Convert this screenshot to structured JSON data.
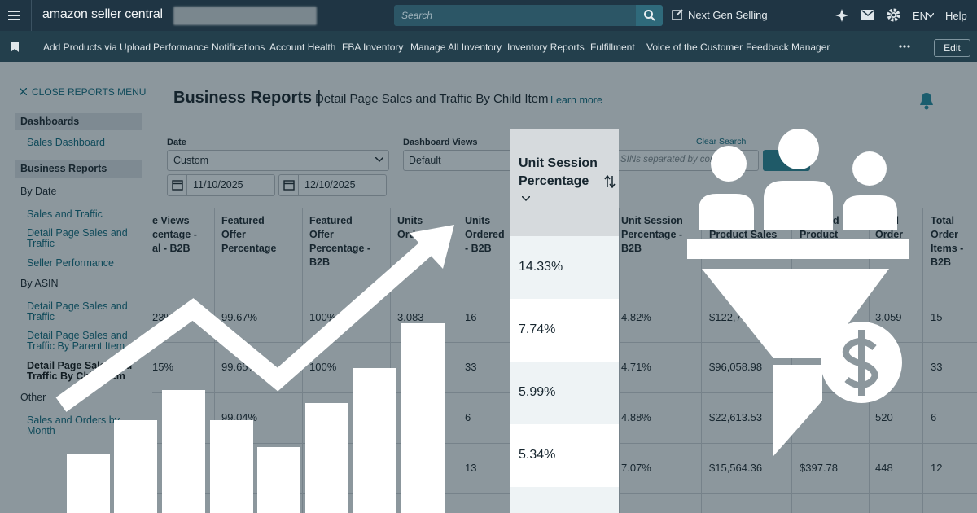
{
  "topbar": {
    "logo": "amazon seller central",
    "search_placeholder": "Search",
    "next_gen": "Next Gen Selling",
    "language": "EN",
    "help": "Help"
  },
  "navbar": {
    "items": [
      "Add Products via Upload",
      "Performance Notifications",
      "Account Health",
      "FBA Inventory",
      "Manage All Inventory",
      "Inventory Reports",
      "Fulfillment",
      "Voice of the Customer",
      "Feedback Manager"
    ],
    "edit": "Edit"
  },
  "sidebar": {
    "close": "CLOSE REPORTS MENU",
    "dashboards": {
      "title": "Dashboards",
      "links": [
        "Sales Dashboard"
      ]
    },
    "business_reports": {
      "title": "Business Reports"
    },
    "by_date": {
      "title": "By Date",
      "links": [
        "Sales and Traffic",
        "Detail Page Sales and Traffic",
        "Seller Performance"
      ]
    },
    "by_asin": {
      "title": "By ASIN",
      "links": [
        "Detail Page Sales and Traffic",
        "Detail Page Sales and Traffic By Parent Item",
        "Detail Page Sales and Traffic By Child Item"
      ]
    },
    "other": {
      "title": "Other",
      "links": [
        "Sales and Orders by Month"
      ]
    }
  },
  "header": {
    "title": "Business Reports |",
    "subtitle": "Detail Page Sales and Traffic By Child Item",
    "learn_more": "Learn more"
  },
  "filters": {
    "date_label": "Date",
    "date_value": "Custom",
    "start_date": "11/10/2025",
    "end_date": "12/10/2025",
    "views_label": "Dashboard Views",
    "views_value": "Default",
    "clear_search": "Clear Search",
    "search_placeholder": "SINs separated by comm"
  },
  "table": {
    "columns": [
      "e Views centage - al - B2B",
      "Featured Offer Percentage",
      "Featured Offer Percentage - B2B",
      "Units Ordered",
      "Units Ordered - B2B",
      "Unit Session Percentage",
      "Unit Session Percentage - B2B",
      "Ordered Product Sales",
      "Ordered Product Sales - B2B",
      "Total Order Items",
      "Total Order Items - B2B"
    ],
    "rows": [
      [
        "23%",
        "99.67%",
        "100%",
        "3,083",
        "16",
        "14.33%",
        "4.82%",
        "$122,7",
        null,
        "3,059",
        "15"
      ],
      [
        "15%",
        "99.65%",
        "100%",
        null,
        "33",
        "7.74%",
        "4.71%",
        "$96,058.98",
        null,
        null,
        "33"
      ],
      [
        null,
        "99.04%",
        null,
        null,
        "6",
        "5.99%",
        "4.88%",
        "$22,613.53",
        null,
        "520",
        "6"
      ],
      [
        null,
        null,
        null,
        null,
        "13",
        "5.34%",
        "7.07%",
        "$15,564.36",
        "$397.78",
        "448",
        "12"
      ]
    ]
  }
}
